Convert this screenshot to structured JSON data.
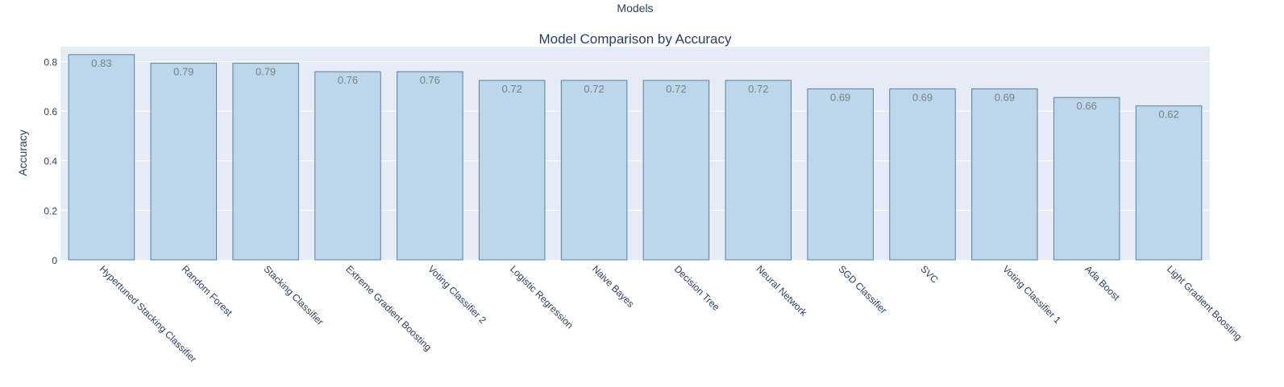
{
  "chart_data": {
    "type": "bar",
    "top_label": "Models",
    "title": "Model Comparison by Accuracy",
    "xlabel": "",
    "ylabel": "Accuracy",
    "ylim": [
      0,
      0.86
    ],
    "yticks": [
      0,
      0.2,
      0.4,
      0.6,
      0.8
    ],
    "ytick_labels": [
      "0",
      "0.2",
      "0.4",
      "0.6",
      "0.8"
    ],
    "grid": true,
    "categories": [
      "Hypertuned Stacking Classifier",
      "Random Forest",
      "Stacking Classifier",
      "Extreme Gradient Boosting",
      "Voting Classifier 2",
      "Logistic Regression",
      "Naive Bayes",
      "Decision Tree",
      "Neural Network",
      "SGD Classifier",
      "SVC",
      "Voting Classifier 1",
      "Ada Boost",
      "Light Gradient Boosting"
    ],
    "values": [
      0.828,
      0.793,
      0.793,
      0.759,
      0.759,
      0.724,
      0.724,
      0.724,
      0.724,
      0.69,
      0.69,
      0.69,
      0.655,
      0.621
    ],
    "value_labels": [
      "0.83",
      "0.79",
      "0.79",
      "0.76",
      "0.76",
      "0.72",
      "0.72",
      "0.72",
      "0.72",
      "0.69",
      "0.69",
      "0.69",
      "0.66",
      "0.62"
    ],
    "colors": {
      "plot_bg": "#e5ecf6",
      "bar_fill": "#bcd6ea",
      "bar_stroke": "#5d7fa8",
      "grid": "#ffffff",
      "text": "#2a3f5f",
      "value_label": "#7a8088"
    }
  }
}
